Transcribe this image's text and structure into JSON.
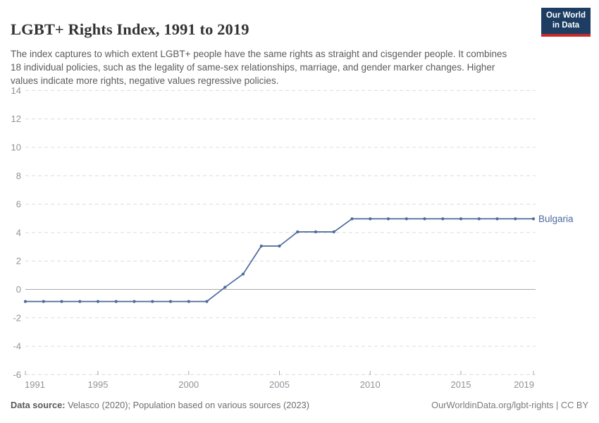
{
  "header": {
    "title": "LGBT+ Rights Index, 1991 to 2019",
    "subtitle": "The index captures to which extent LGBT+ people have the same rights as straight and cisgender people. It combines 18 individual policies, such as the legality of same-sex relationships, marriage, and gender marker changes. Higher values indicate more rights, negative values regressive policies.",
    "logo": {
      "line1": "Our World",
      "line2": "in Data"
    }
  },
  "chart_data": {
    "type": "line",
    "title": "LGBT+ Rights Index, 1991 to 2019",
    "xlabel": "",
    "ylabel": "",
    "xlim": [
      1991,
      2019
    ],
    "ylim": [
      -6,
      14
    ],
    "yticks": [
      -6,
      -4,
      -2,
      0,
      2,
      4,
      6,
      8,
      10,
      12,
      14
    ],
    "xticks": [
      1991,
      1995,
      2000,
      2005,
      2010,
      2015,
      2019
    ],
    "grid": "horizontal-dashed, zero line solid",
    "legend_position": "line-end-label",
    "series": [
      {
        "name": "Bulgaria",
        "color": "#4C6A9C",
        "x": [
          1991,
          1992,
          1993,
          1994,
          1995,
          1996,
          1997,
          1998,
          1999,
          2000,
          2001,
          2002,
          2003,
          2004,
          2005,
          2006,
          2007,
          2008,
          2009,
          2010,
          2011,
          2012,
          2013,
          2014,
          2015,
          2016,
          2017,
          2018,
          2019
        ],
        "values": [
          -0.85,
          -0.85,
          -0.85,
          -0.85,
          -0.85,
          -0.85,
          -0.85,
          -0.85,
          -0.85,
          -0.85,
          -0.85,
          0.15,
          1.08,
          3.05,
          3.05,
          4.05,
          4.05,
          4.05,
          4.97,
          4.97,
          4.97,
          4.97,
          4.97,
          4.97,
          4.97,
          4.97,
          4.97,
          4.97,
          4.97
        ]
      }
    ]
  },
  "footer": {
    "source_label": "Data source:",
    "source_text": " Velasco (2020); Population based on various sources (2023)",
    "credit": "OurWorldinData.org/lgbt-rights | CC BY"
  },
  "colors": {
    "series_blue": "#4C6A9C",
    "title_text": "#333333",
    "subtitle_text": "#5b5b5b",
    "axis_label": "#8f9398",
    "grid_dashed": "#dcdcdc",
    "zero_line": "#a9a9a9",
    "tick_mark": "#a8a8a8",
    "logo_bg": "#1d3d63",
    "logo_red": "#c5292d"
  }
}
